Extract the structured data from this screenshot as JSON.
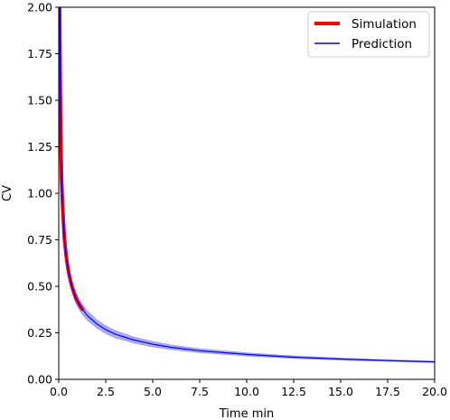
{
  "chart_data": {
    "type": "line",
    "xlabel": "Time min",
    "ylabel": "CV",
    "xlim": [
      0,
      20
    ],
    "ylim": [
      0,
      2
    ],
    "grid": false,
    "legend_position": "top-right",
    "x_ticks": [
      "0.0",
      "2.5",
      "5.0",
      "7.5",
      "10.0",
      "12.5",
      "15.0",
      "17.5",
      "20.0"
    ],
    "y_ticks": [
      "0.00",
      "0.25",
      "0.50",
      "0.75",
      "1.00",
      "1.25",
      "1.50",
      "1.75",
      "2.00"
    ],
    "series": [
      {
        "name": "Simulation",
        "color": "#ff0000",
        "x": [
          0.05,
          0.1,
          0.15,
          0.2,
          0.3,
          0.4,
          0.5,
          0.6,
          0.7,
          0.8,
          0.9,
          1.0,
          1.1,
          1.2,
          1.3
        ],
        "y": [
          2.0,
          1.33,
          1.08,
          0.94,
          0.76,
          0.66,
          0.59,
          0.54,
          0.5,
          0.47,
          0.44,
          0.42,
          0.4,
          0.385,
          0.37
        ]
      },
      {
        "name": "Prediction",
        "color": "#0000ff",
        "band_color": "#6666ee",
        "x": [
          0.05,
          0.1,
          0.15,
          0.2,
          0.3,
          0.4,
          0.5,
          0.6,
          0.7,
          0.8,
          0.9,
          1.0,
          1.2,
          1.5,
          2.0,
          2.5,
          3.0,
          4.0,
          5.0,
          6.0,
          7.5,
          10.0,
          12.5,
          15.0,
          17.5,
          20.0
        ],
        "y": [
          2.0,
          1.33,
          1.08,
          0.94,
          0.76,
          0.66,
          0.59,
          0.54,
          0.5,
          0.47,
          0.44,
          0.42,
          0.385,
          0.345,
          0.3,
          0.267,
          0.243,
          0.211,
          0.189,
          0.172,
          0.154,
          0.134,
          0.119,
          0.109,
          0.101,
          0.094
        ],
        "lower": [
          1.9,
          1.26,
          1.02,
          0.89,
          0.72,
          0.62,
          0.555,
          0.505,
          0.47,
          0.44,
          0.41,
          0.39,
          0.355,
          0.318,
          0.276,
          0.245,
          0.223,
          0.194,
          0.174,
          0.159,
          0.143,
          0.125,
          0.112,
          0.103,
          0.096,
          0.09
        ],
        "upper": [
          2.1,
          1.4,
          1.14,
          0.99,
          0.8,
          0.7,
          0.625,
          0.575,
          0.53,
          0.5,
          0.47,
          0.45,
          0.415,
          0.372,
          0.324,
          0.289,
          0.263,
          0.228,
          0.204,
          0.185,
          0.165,
          0.143,
          0.126,
          0.115,
          0.106,
          0.098
        ]
      }
    ]
  }
}
